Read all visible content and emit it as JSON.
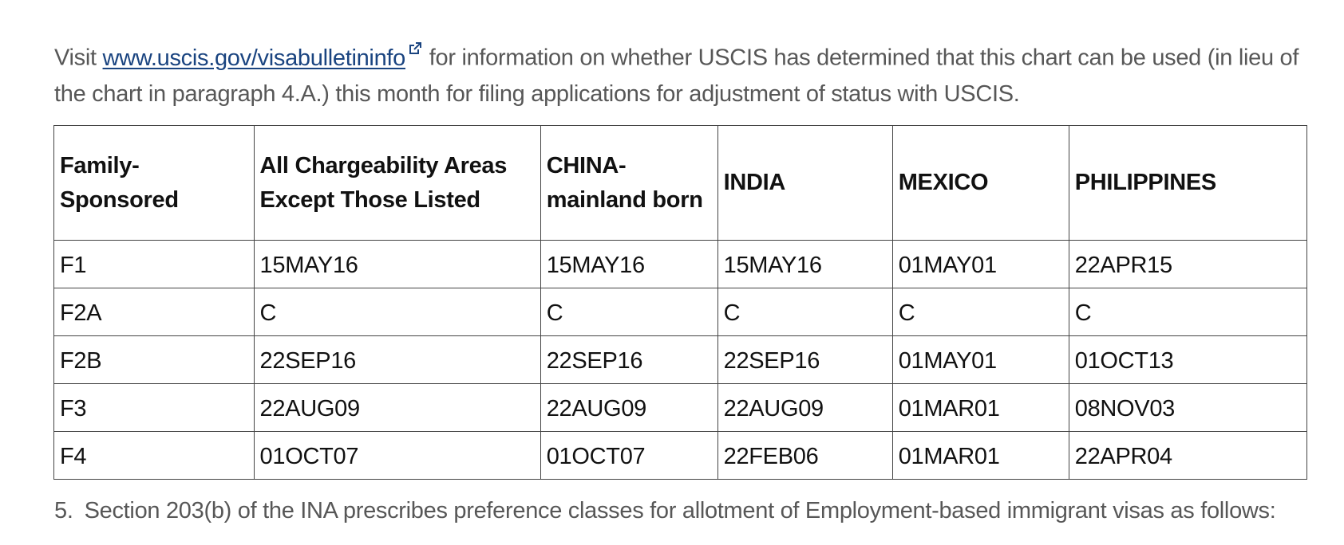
{
  "intro": {
    "visit_text": "Visit ",
    "link_text": "www.uscis.gov/visabulletininfo",
    "rest_text": " for information on whether USCIS has determined that this chart can be used (in lieu of the chart in paragraph 4.A.) this month for filing applications for adjustment of status with USCIS."
  },
  "table": {
    "headers": [
      "Family-Sponsored",
      "All Chargeability Areas Except Those Listed",
      "CHINA-mainland born",
      "INDIA",
      "MEXICO",
      "PHILIPPINES"
    ],
    "rows": [
      [
        "F1",
        "15MAY16",
        "15MAY16",
        "15MAY16",
        "01MAY01",
        "22APR15"
      ],
      [
        "F2A",
        "C",
        "C",
        "C",
        "C",
        "C"
      ],
      [
        "F2B",
        "22SEP16",
        "22SEP16",
        "22SEP16",
        "01MAY01",
        "01OCT13"
      ],
      [
        "F3",
        "22AUG09",
        "22AUG09",
        "22AUG09",
        "01MAR01",
        "08NOV03"
      ],
      [
        "F4",
        "01OCT07",
        "01OCT07",
        "22FEB06",
        "01MAR01",
        "22APR04"
      ]
    ]
  },
  "section5": {
    "number": "5.",
    "text": "Section 203(b) of the INA prescribes preference classes for allotment of Employment-based immigrant visas as follows:"
  },
  "colors": {
    "body_text": "#575757",
    "link": "#1a4480",
    "table_text": "#111111",
    "table_border": "#444444"
  },
  "icons": {
    "external_link": "external-link-icon"
  }
}
